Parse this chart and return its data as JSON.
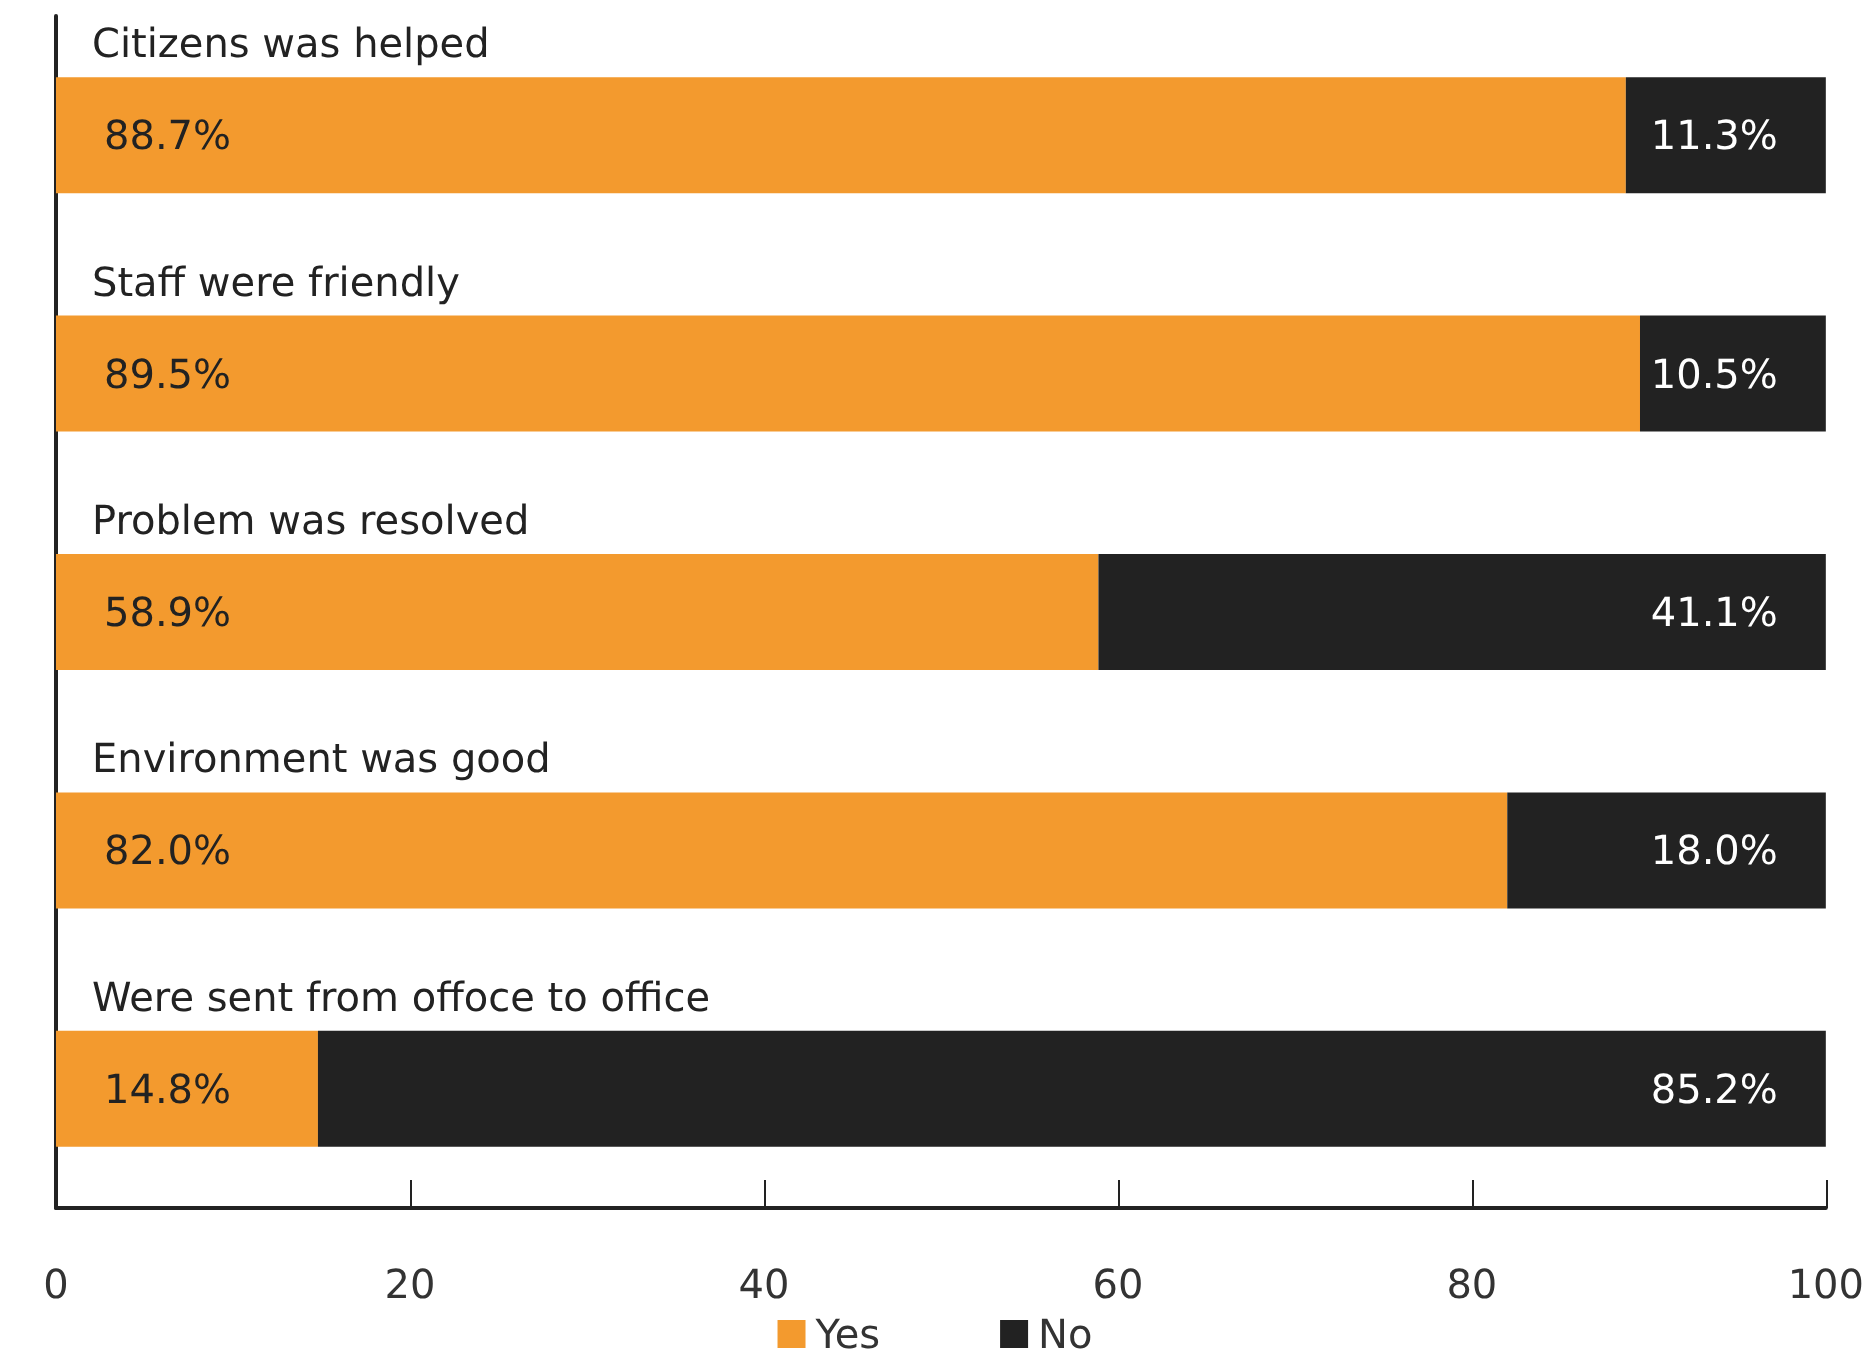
{
  "chart_data": {
    "type": "bar",
    "orientation": "horizontal",
    "stacked": true,
    "categories": [
      "Citizens was helped",
      "Staff were friendly",
      "Problem was resolved",
      "Environment was good",
      "Were sent from offoce to office"
    ],
    "series": [
      {
        "name": "Yes",
        "color": "#f39a2e",
        "values": [
          88.7,
          89.5,
          58.9,
          82.0,
          14.8
        ],
        "value_labels": [
          "88.7%",
          "89.5%",
          "58.9%",
          "82.0%",
          "14.8%"
        ]
      },
      {
        "name": "No",
        "color": "#222222",
        "values": [
          11.3,
          10.5,
          41.1,
          18.0,
          85.2
        ],
        "value_labels": [
          "11.3%",
          "10.5%",
          "41.1%",
          "18.0%",
          "85.2%"
        ]
      }
    ],
    "xlim": [
      0,
      100
    ],
    "xticks": [
      0,
      20,
      40,
      60,
      80,
      100
    ],
    "grid": false,
    "legend": "bottom"
  }
}
